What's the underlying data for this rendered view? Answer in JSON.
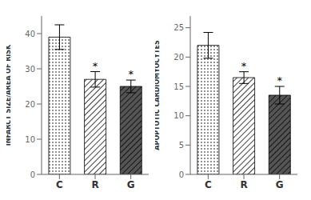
{
  "chart_data": [
    {
      "type": "bar",
      "categories": [
        "C",
        "R",
        "G"
      ],
      "values": [
        39.0,
        27.0,
        25.0
      ],
      "errors": [
        3.5,
        2.2,
        1.8
      ],
      "ylim": [
        0,
        45
      ],
      "yticks": [
        0,
        10,
        20,
        30,
        40
      ],
      "ylabel": "INFARCT SIZE/AREA OF RISK",
      "annotations": [
        null,
        "*",
        "*"
      ],
      "colors": [
        "white",
        "white",
        "#555555"
      ]
    },
    {
      "type": "bar",
      "categories": [
        "C",
        "R",
        "G"
      ],
      "values": [
        22.0,
        16.5,
        13.5
      ],
      "errors": [
        2.2,
        1.0,
        1.5
      ],
      "ylim": [
        0,
        27
      ],
      "yticks": [
        0,
        5,
        10,
        15,
        20,
        25
      ],
      "ylabel": "APOPTOTIC CARDIOMYOCYTES",
      "annotations": [
        null,
        "*",
        "*"
      ],
      "colors": [
        "white",
        "white",
        "#555555"
      ]
    }
  ]
}
